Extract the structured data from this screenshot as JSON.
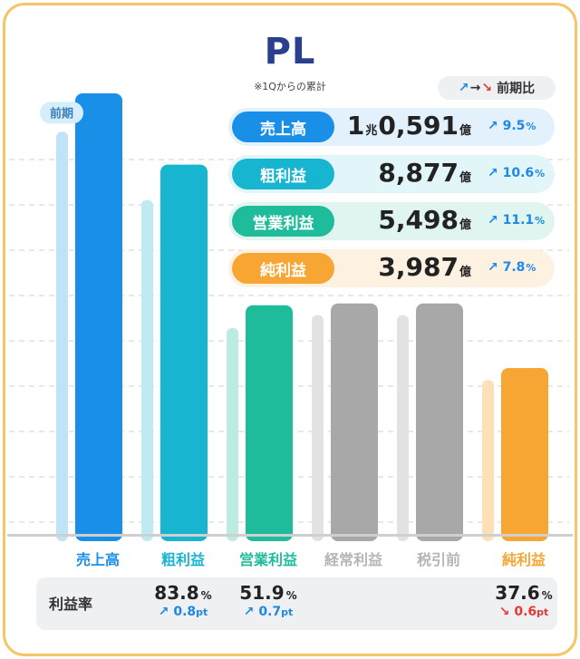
{
  "title": "PL",
  "subtitle": "※1Qからの累計",
  "legend": {
    "label": "前期比"
  },
  "prev_label": "前期",
  "metrics": [
    {
      "name": "売上高",
      "pre": "1",
      "pre_unit": "兆",
      "value": "0,591",
      "unit": "億",
      "change": "9.5",
      "pct": "%",
      "dir": "up",
      "color": "#1a8fe8",
      "bg": "#e3f1fc"
    },
    {
      "name": "粗利益",
      "pre": "",
      "pre_unit": "",
      "value": "8,877",
      "unit": "億",
      "change": "10.6",
      "pct": "%",
      "dir": "up",
      "color": "#18b5d1",
      "bg": "#e2f5f9"
    },
    {
      "name": "営業利益",
      "pre": "",
      "pre_unit": "",
      "value": "5,498",
      "unit": "億",
      "change": "11.1",
      "pct": "%",
      "dir": "up",
      "color": "#1ebc9b",
      "bg": "#e0f5ef"
    },
    {
      "name": "純利益",
      "pre": "",
      "pre_unit": "",
      "value": "3,987",
      "unit": "億",
      "change": "7.8",
      "pct": "%",
      "dir": "up",
      "color": "#f7a533",
      "bg": "#fdf2e2"
    }
  ],
  "ratio_heading": "利益率",
  "ratios": [
    {
      "value": "83.8",
      "pct": "%",
      "change": "0.8",
      "unit": "pt",
      "dir": "up"
    },
    {
      "value": "51.9",
      "pct": "%",
      "change": "0.7",
      "unit": "pt",
      "dir": "up"
    },
    {
      "value": "37.6",
      "pct": "%",
      "change": "0.6",
      "unit": "pt",
      "dir": "down"
    }
  ],
  "chart_data": {
    "type": "bar",
    "categories": [
      "売上高",
      "粗利益",
      "営業利益",
      "経常利益",
      "税引前",
      "純利益"
    ],
    "series": [
      {
        "name": "前期",
        "values": [
          9668,
          8026,
          4949,
          5260,
          5260,
          3699
        ]
      },
      {
        "values": [
          10591,
          8877,
          5498,
          5540,
          5540,
          3987
        ]
      }
    ],
    "colors_current": [
      "#1a8fe8",
      "#18b5d1",
      "#1ebc9b",
      "#a8a8a8",
      "#a8a8a8",
      "#f7a533"
    ],
    "colors_prev": [
      "#bfe3f7",
      "#bfe9f3",
      "#bcece0",
      "#e2e2e2",
      "#e2e2e2",
      "#fde0b8"
    ],
    "label_colors": [
      "#1a8fe8",
      "#18b5d1",
      "#1ebc9b",
      "#b5b5b5",
      "#b5b5b5",
      "#f7a533"
    ],
    "ylim": [
      0,
      11000
    ],
    "grid": true
  }
}
